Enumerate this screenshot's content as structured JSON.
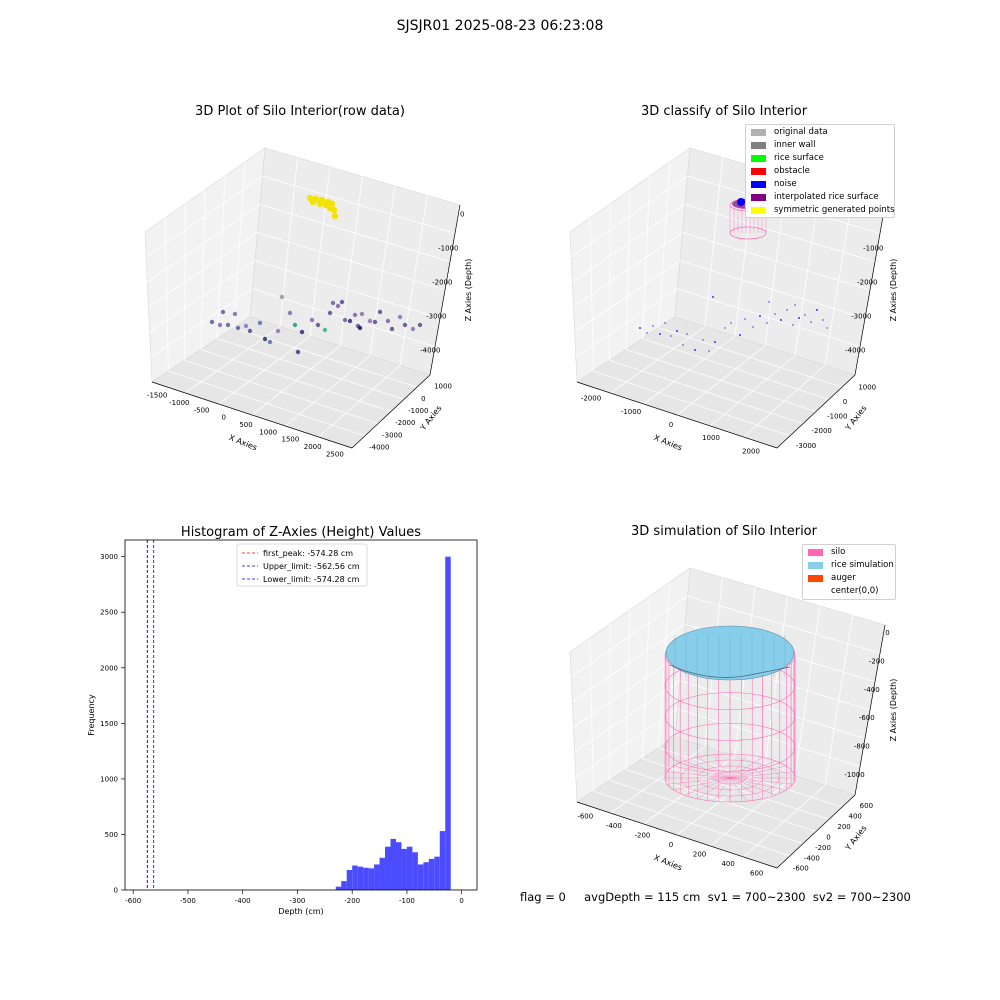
{
  "suptitle": "SJSJR01 2025-08-23 06:23:08",
  "panel1": {
    "title": "3D Plot of Silo Interior(row data)",
    "x_ticks": [
      "-1500",
      "-1000",
      "-500",
      "0",
      "500",
      "1000",
      "1500",
      "2000",
      "2500"
    ],
    "y_ticks": [
      "1000",
      "0",
      "-1000",
      "-2000",
      "-3000",
      "-4000"
    ],
    "z_ticks": [
      "0",
      "-1000",
      "-2000",
      "-3000",
      "-4000"
    ],
    "xlabel": "X Axies",
    "ylabel": "Y Axies",
    "zlabel": "Z Axies (Depth)"
  },
  "panel2": {
    "title": "3D classify of Silo Interior",
    "x_ticks": [
      "-2000",
      "-1000",
      "0",
      "1000",
      "2000"
    ],
    "y_ticks": [
      "1000",
      "0",
      "-1000",
      "-2000",
      "-3000"
    ],
    "z_ticks": [
      "0",
      "-1000",
      "-2000",
      "-3000",
      "-4000"
    ],
    "xlabel": "X Axies",
    "ylabel": "Y Axies",
    "zlabel": "Z Axies (Depth)",
    "legend": [
      {
        "label": "original data",
        "color": "#b0b0b0"
      },
      {
        "label": "inner wall",
        "color": "#808080"
      },
      {
        "label": "rice surface",
        "color": "#00ff00"
      },
      {
        "label": "obstacle",
        "color": "#ff0000"
      },
      {
        "label": "noise",
        "color": "#0000ff"
      },
      {
        "label": "interpolated rice surface",
        "color": "#800080"
      },
      {
        "label": "symmetric generated points",
        "color": "#ffff00"
      }
    ]
  },
  "panel3": {
    "title": "3D simulation of Silo Interior",
    "x_ticks": [
      "-600",
      "-400",
      "-200",
      "0",
      "200",
      "400",
      "600"
    ],
    "y_ticks": [
      "600",
      "400",
      "200",
      "0",
      "-200",
      "-400",
      "-600"
    ],
    "z_ticks": [
      "0",
      "-200",
      "-400",
      "-600",
      "-800",
      "-1000"
    ],
    "xlabel": "X Axies",
    "ylabel": "Y Axies",
    "zlabel": "Z Axies (Depth)",
    "legend": [
      {
        "label": "silo",
        "color": "#ff69b4"
      },
      {
        "label": "rice simulation",
        "color": "#87ceeb"
      },
      {
        "label": "auger",
        "color": "#ff4500"
      },
      {
        "label": "center(0,0)",
        "color": "#ffffff"
      }
    ]
  },
  "footer": "flag = 0     avgDepth = 115 cm  sv1 = 700~2300  sv2 = 700~2300",
  "chart_data": [
    {
      "type": "histogram",
      "title": "Histogram of Z-Axies (Height) Values",
      "xlabel": "Depth (cm)",
      "ylabel": "Frequency",
      "xlim": [
        -615,
        28
      ],
      "ylim": [
        0,
        3150
      ],
      "x_ticks": [
        -600,
        -500,
        -400,
        -300,
        -200,
        -100,
        0
      ],
      "y_ticks": [
        0,
        500,
        1000,
        1500,
        2000,
        2500,
        3000
      ],
      "bin_width": 10,
      "bins_start": [
        -230,
        -220,
        -210,
        -200,
        -190,
        -180,
        -170,
        -160,
        -150,
        -140,
        -130,
        -120,
        -110,
        -100,
        -90,
        -80,
        -70,
        -60,
        -50,
        -40,
        -30,
        -20,
        -10
      ],
      "counts": [
        30,
        80,
        180,
        220,
        210,
        200,
        195,
        230,
        290,
        390,
        460,
        430,
        370,
        390,
        340,
        230,
        250,
        280,
        300,
        530,
        3000,
        0,
        0
      ],
      "bar_color": "#4b4bff",
      "vlines": [
        {
          "label": "first_peak: -574.28 cm",
          "x": -574.28,
          "color": "#ff0000"
        },
        {
          "label": "Upper_limit: -562.56 cm",
          "x": -562.56,
          "color": "#0000a0"
        },
        {
          "label": "Lower_limit: -574.28 cm",
          "x": -574.28,
          "color": "#0000ff"
        }
      ],
      "legend_position": "top-center"
    }
  ]
}
